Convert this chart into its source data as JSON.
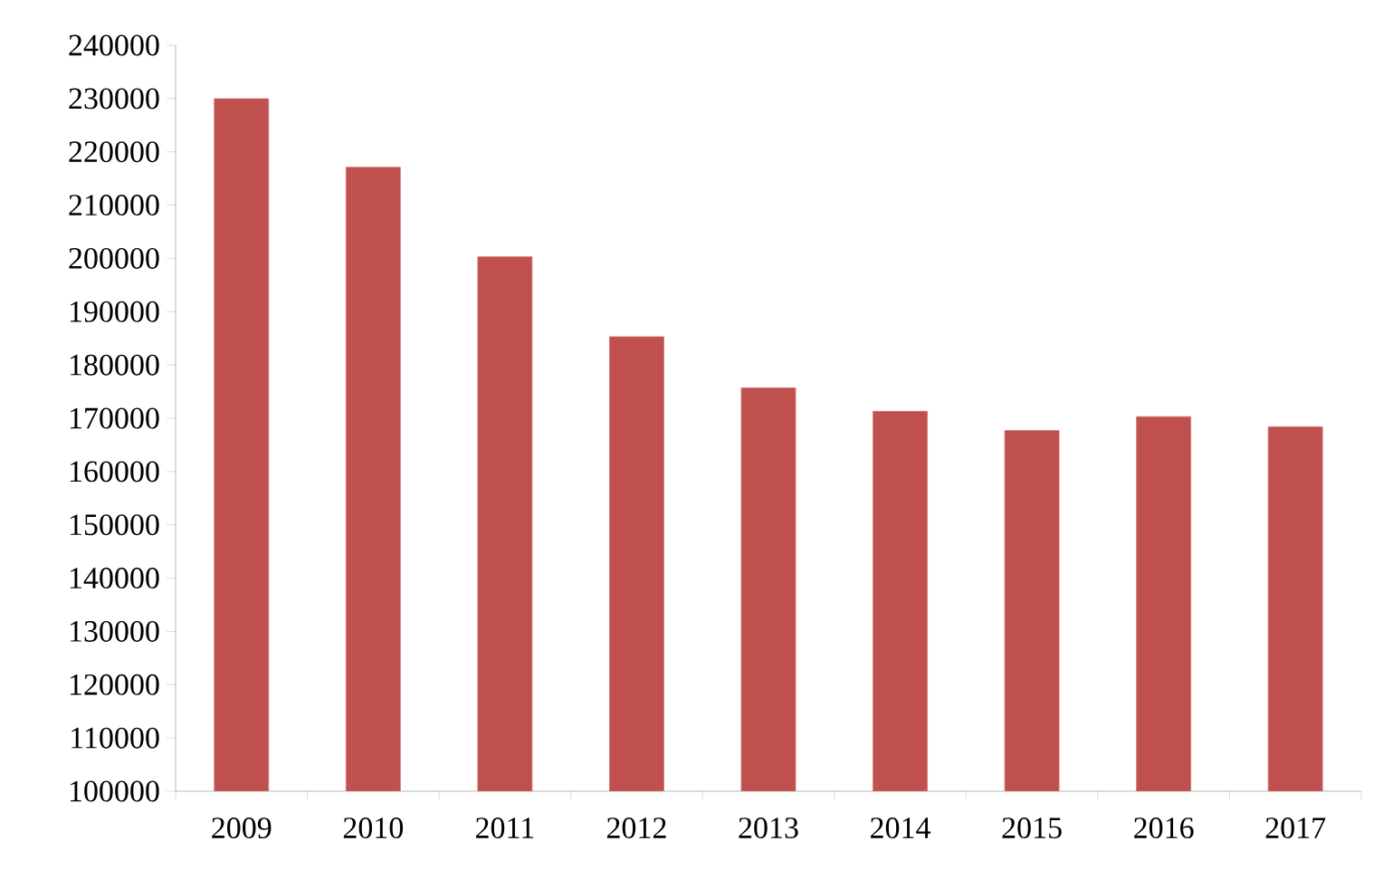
{
  "chart_data": {
    "type": "bar",
    "categories": [
      "2009",
      "2010",
      "2011",
      "2012",
      "2013",
      "2014",
      "2015",
      "2016",
      "2017"
    ],
    "values": [
      230000,
      217100,
      200300,
      185300,
      175700,
      171300,
      167700,
      170300,
      168400
    ],
    "color": "#c0504d",
    "ylim": [
      100000,
      240000
    ],
    "yticks": [
      100000,
      110000,
      120000,
      130000,
      140000,
      150000,
      160000,
      170000,
      180000,
      190000,
      200000,
      210000,
      220000,
      230000,
      240000
    ]
  }
}
